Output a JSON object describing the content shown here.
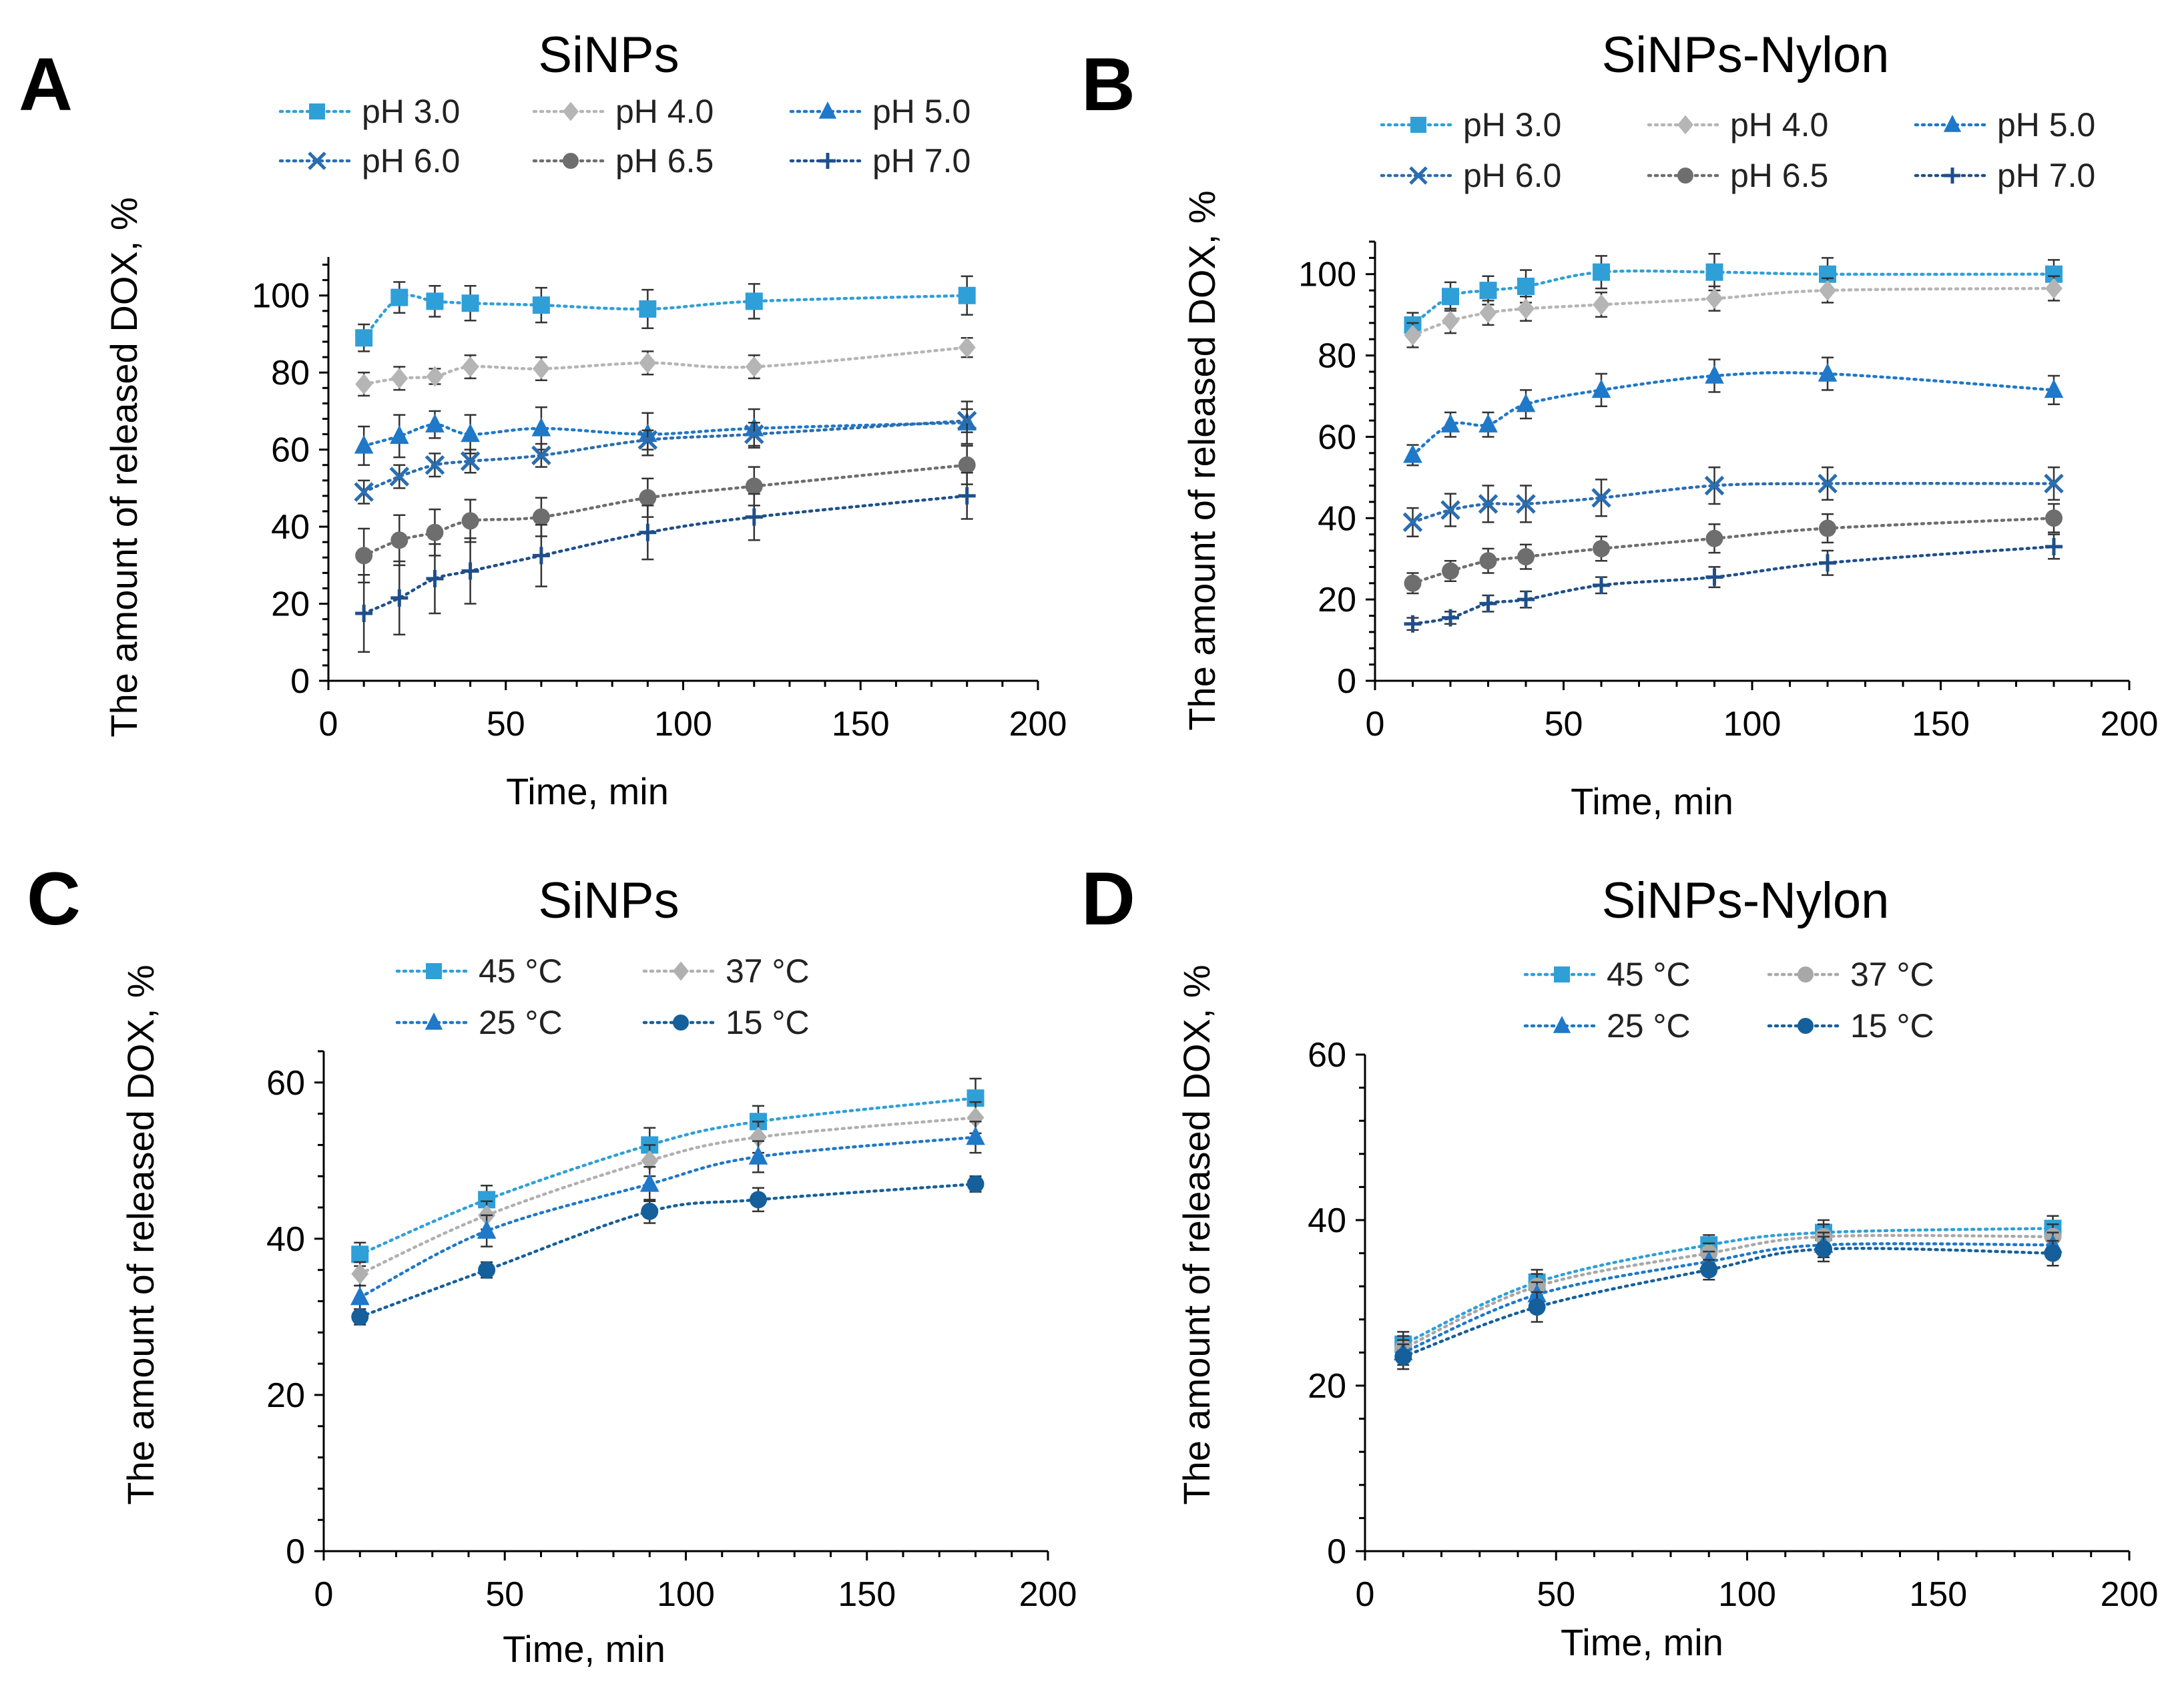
{
  "figure": {
    "panels": [
      "A",
      "B",
      "C",
      "D"
    ]
  },
  "chart_data": [
    {
      "panel": "A",
      "type": "line",
      "title": "SiNPs",
      "xlabel": "Time, min",
      "ylabel": "The amount of released DOX, %",
      "xlim": [
        0,
        200
      ],
      "ylim": [
        0,
        110
      ],
      "xticks": [
        0,
        50,
        100,
        150,
        200
      ],
      "yticks": [
        0,
        20,
        40,
        60,
        80,
        100
      ],
      "legend_columns": 3,
      "x": [
        10,
        20,
        30,
        40,
        60,
        90,
        120,
        180
      ],
      "series": [
        {
          "name": "pH 3.0",
          "marker": "square",
          "color": "#2f9fd8",
          "values": [
            89,
            99.5,
            98.5,
            98,
            97.5,
            96.5,
            98.5,
            100
          ],
          "errors": [
            3.5,
            4,
            4,
            4.5,
            4.5,
            5,
            4.5,
            5
          ]
        },
        {
          "name": "pH 4.0",
          "marker": "diamond",
          "color": "#b5b5b5",
          "values": [
            77,
            78.5,
            79,
            81.5,
            81,
            82.5,
            81.5,
            86.5
          ],
          "errors": [
            3,
            3,
            2,
            3,
            3,
            3,
            3,
            2.5
          ]
        },
        {
          "name": "pH 5.0",
          "marker": "triangle",
          "color": "#1f78c8",
          "values": [
            61,
            63.5,
            66.5,
            64,
            65.5,
            64,
            65.5,
            67
          ],
          "errors": [
            5,
            5.5,
            3.5,
            5,
            5.5,
            5.5,
            5,
            5.5
          ]
        },
        {
          "name": "pH 6.0",
          "marker": "x",
          "color": "#2a6db0",
          "values": [
            49,
            53,
            56,
            57,
            58.5,
            62.5,
            64,
            67.5
          ],
          "errors": [
            3,
            3,
            3,
            3,
            3,
            2.5,
            3,
            3
          ]
        },
        {
          "name": "pH 6.5",
          "marker": "circle",
          "color": "#6e6e6e",
          "values": [
            32.5,
            36.5,
            38.5,
            41.5,
            42.5,
            47.5,
            50.5,
            56
          ],
          "errors": [
            7,
            6.5,
            6,
            5.5,
            5,
            5,
            5,
            5
          ]
        },
        {
          "name": "pH 7.0",
          "marker": "plus",
          "color": "#1f4f8a",
          "values": [
            17.5,
            21.5,
            26.5,
            28.5,
            32.5,
            38.5,
            42.5,
            48
          ],
          "errors": [
            10,
            9.5,
            9,
            8.5,
            8,
            7,
            6,
            6
          ]
        }
      ]
    },
    {
      "panel": "B",
      "type": "line",
      "title": "SiNPs-Nylon",
      "xlabel": "Time, min",
      "ylabel": "The amount of released DOX, %",
      "xlim": [
        0,
        200
      ],
      "ylim": [
        0,
        108
      ],
      "xticks": [
        0,
        50,
        100,
        150,
        200
      ],
      "yticks": [
        0,
        20,
        40,
        60,
        80,
        100
      ],
      "legend_columns": 3,
      "x": [
        10,
        20,
        30,
        40,
        60,
        90,
        120,
        180
      ],
      "series": [
        {
          "name": "pH 3.0",
          "marker": "square",
          "color": "#2f9fd8",
          "values": [
            87.5,
            94.5,
            96,
            97,
            100.5,
            100.5,
            100,
            100
          ],
          "errors": [
            3,
            3.5,
            3.5,
            4,
            4,
            4.5,
            4,
            3.5
          ]
        },
        {
          "name": "pH 4.0",
          "marker": "diamond",
          "color": "#b5b5b5",
          "values": [
            85,
            88.5,
            90.5,
            91.5,
            92.5,
            94,
            96,
            96.5
          ],
          "errors": [
            3,
            3,
            3,
            3,
            3,
            3,
            3,
            3
          ]
        },
        {
          "name": "pH 5.0",
          "marker": "triangle",
          "color": "#1f78c8",
          "values": [
            55.5,
            63,
            63,
            68,
            71.5,
            75,
            75.5,
            71.5
          ],
          "errors": [
            2.5,
            3,
            3,
            3.5,
            4,
            4,
            4,
            3.5
          ]
        },
        {
          "name": "pH 6.0",
          "marker": "x",
          "color": "#2a6db0",
          "values": [
            39,
            42,
            43.5,
            43.5,
            45,
            48,
            48.5,
            48.5
          ],
          "errors": [
            3.5,
            4,
            4.5,
            4.5,
            4.5,
            4.5,
            4,
            4
          ]
        },
        {
          "name": "pH 6.5",
          "marker": "circle",
          "color": "#6e6e6e",
          "values": [
            24,
            27,
            29.5,
            30.5,
            32.5,
            35,
            37.5,
            40
          ],
          "errors": [
            2.5,
            2.5,
            3,
            3,
            3,
            3.5,
            3.5,
            3.5
          ]
        },
        {
          "name": "pH 7.0",
          "marker": "plus",
          "color": "#1f4f8a",
          "values": [
            14,
            15.5,
            19,
            20,
            23.5,
            25.5,
            29,
            33
          ],
          "errors": [
            1.5,
            1.5,
            2,
            2,
            2,
            2.5,
            3,
            3
          ]
        }
      ]
    },
    {
      "panel": "C",
      "type": "line",
      "title": "SiNPs",
      "xlabel": "Time, min",
      "ylabel": "The amount of released DOX, %",
      "xlim": [
        0,
        200
      ],
      "ylim": [
        0,
        64
      ],
      "xticks": [
        0,
        50,
        100,
        150,
        200
      ],
      "yticks": [
        0,
        20,
        40,
        60
      ],
      "legend_columns": 2,
      "x": [
        10,
        45,
        90,
        120,
        180
      ],
      "series": [
        {
          "name": "45 °C",
          "marker": "square",
          "color": "#2f9fd8",
          "values": [
            38,
            45,
            52,
            55,
            58
          ],
          "errors": [
            1.5,
            1.8,
            2.2,
            2,
            2.5
          ]
        },
        {
          "name": "37 °C",
          "marker": "diamond",
          "color": "#b0b0b0",
          "values": [
            35.5,
            43,
            50,
            53,
            55.5
          ],
          "errors": [
            1.5,
            1.8,
            2,
            2,
            2
          ]
        },
        {
          "name": "25 °C",
          "marker": "triangle",
          "color": "#1f78c8",
          "values": [
            32.5,
            41,
            47,
            50.5,
            53
          ],
          "errors": [
            1.5,
            2,
            2.2,
            2,
            2
          ]
        },
        {
          "name": "15 °C",
          "marker": "circle",
          "color": "#155f9a",
          "values": [
            30,
            36,
            43.5,
            45,
            47
          ],
          "errors": [
            1,
            1,
            1.5,
            1.5,
            1
          ]
        }
      ]
    },
    {
      "panel": "D",
      "type": "line",
      "title": "SiNPs-Nylon",
      "xlabel": "Time, min",
      "ylabel": "The amount of released DOX, %",
      "xlim": [
        0,
        200
      ],
      "ylim": [
        0,
        60
      ],
      "xticks": [
        0,
        50,
        100,
        150,
        200
      ],
      "yticks": [
        0,
        20,
        40,
        60
      ],
      "legend_columns": 2,
      "x": [
        10,
        45,
        90,
        120,
        180
      ],
      "series": [
        {
          "name": "45 °C",
          "marker": "square",
          "color": "#2f9fd8",
          "values": [
            25,
            32.5,
            37,
            38.5,
            39
          ],
          "errors": [
            1.5,
            1.5,
            1.2,
            1.5,
            1.5
          ]
        },
        {
          "name": "37 °C",
          "marker": "circle",
          "color": "#a8a8a8",
          "values": [
            24.5,
            32,
            36,
            38,
            38
          ],
          "errors": [
            1.5,
            1.5,
            1.2,
            1.5,
            1.5
          ]
        },
        {
          "name": "25 °C",
          "marker": "triangle",
          "color": "#1f78c8",
          "values": [
            24,
            31,
            35,
            37,
            37
          ],
          "errors": [
            1.5,
            1.5,
            1.2,
            1.5,
            1.5
          ]
        },
        {
          "name": "15 °C",
          "marker": "circle",
          "color": "#155f9a",
          "values": [
            23.5,
            29.5,
            34,
            36.5,
            36
          ],
          "errors": [
            1.5,
            1.8,
            1.2,
            1.5,
            1.5
          ]
        }
      ]
    }
  ]
}
